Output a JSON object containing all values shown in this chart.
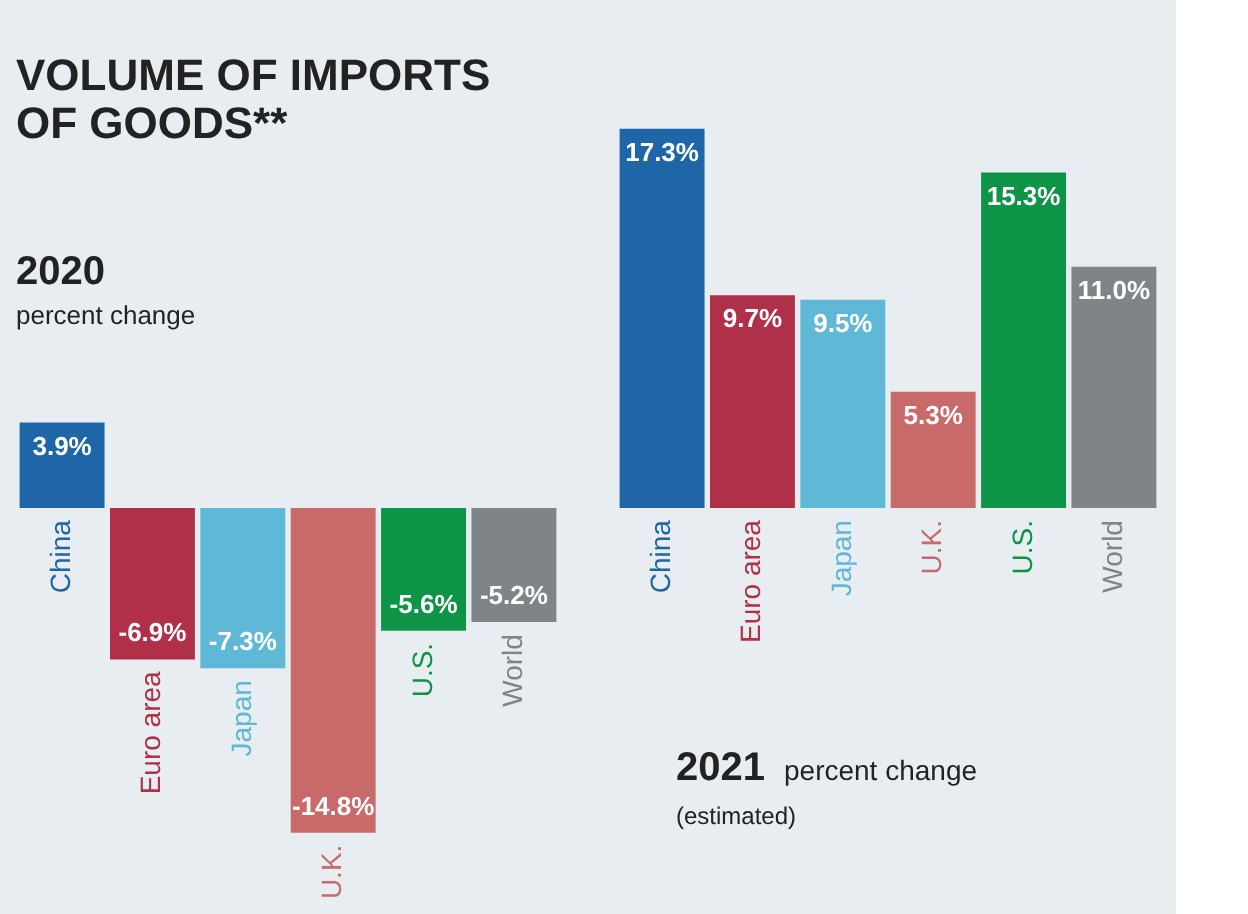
{
  "chart_data": [
    {
      "type": "bar",
      "title": "VOLUME OF IMPORTS OF GOODS**",
      "annotations": [
        "2020",
        "percent change"
      ],
      "categories": [
        "China",
        "Euro area",
        "Japan",
        "U.K.",
        "U.S.",
        "World"
      ],
      "values": [
        3.9,
        -6.9,
        -7.3,
        -14.8,
        -5.6,
        -5.2
      ],
      "value_labels": [
        "3.9%",
        "-6.9%",
        "-7.3%",
        "-14.8%",
        "-5.6%",
        "-5.2%"
      ],
      "colors": [
        "#1f66a8",
        "#b0304a",
        "#5fb8d6",
        "#c86a6a",
        "#0e9447",
        "#7f8487"
      ]
    },
    {
      "type": "bar",
      "title": "2021",
      "subtitle": "percent change",
      "annotations": [
        "(estimated)"
      ],
      "categories": [
        "China",
        "Euro area",
        "Japan",
        "U.K.",
        "U.S.",
        "World"
      ],
      "values": [
        17.3,
        9.7,
        9.5,
        5.3,
        15.3,
        11.0
      ],
      "value_labels": [
        "17.3%",
        "9.7%",
        "9.5%",
        "5.3%",
        "15.3%",
        "11.0%"
      ],
      "colors": [
        "#1f66a8",
        "#b0304a",
        "#5fb8d6",
        "#c86a6a",
        "#0e9447",
        "#7f8487"
      ]
    }
  ]
}
